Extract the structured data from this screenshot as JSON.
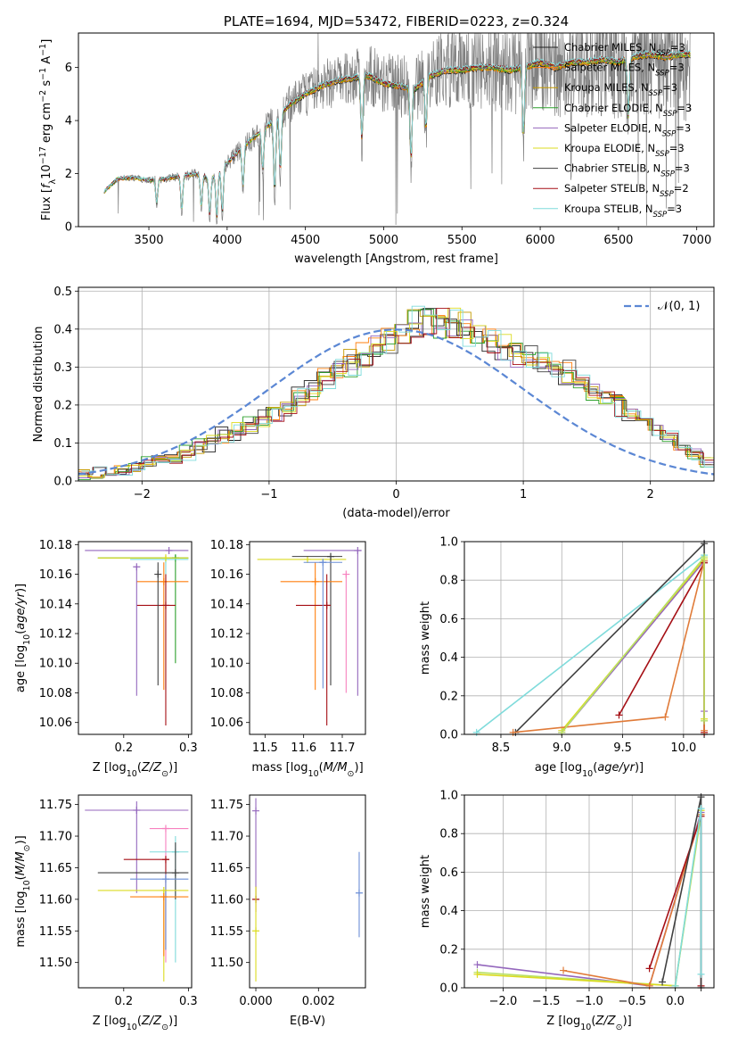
{
  "colors": {
    "chabrier_miles": "#1f1f1f",
    "salpeter_miles": "#ff7f0e",
    "kroupa_miles": "#c49a00",
    "chabrier_elodie": "#2ca02c",
    "salpeter_elodie": "#9467bd",
    "kroupa_elodie": "#dbdb20",
    "chabrier_stelib": "#404040",
    "salpeter_stelib": "#a50f15",
    "kroupa_stelib": "#7fdbdb",
    "pink": "#f781bf",
    "blue": "#6b8fd6",
    "orange2": "#e07b39",
    "light_green": "#b8e066",
    "data_gray": "#808080",
    "normal_curve": "#5b87d4"
  },
  "chart_data": [
    {
      "type": "line",
      "title": "PLATE=1694, MJD=53472, FIBERID=0223, z=0.324",
      "xlabel": "wavelength [Angstrom, rest frame]",
      "ylabel": "Flux [f_λ 10^-17 erg cm^-2 s^-1 A^-1]",
      "xlim": [
        3050,
        7110
      ],
      "ylim": [
        0,
        7.3
      ],
      "xticks": [
        "3500",
        "4000",
        "4500",
        "5000",
        "5500",
        "6000",
        "6500",
        "7000"
      ],
      "yticks": [
        "0",
        "2",
        "4",
        "6"
      ],
      "legend_position": "right",
      "legend": [
        {
          "label": "Chabrier MILES, N",
          "sub": "SSP",
          "suffix": "=3",
          "color": "chabrier_miles"
        },
        {
          "label": "Salpeter MILES, N",
          "sub": "SSP",
          "suffix": "=3",
          "color": "salpeter_miles"
        },
        {
          "label": "Kroupa MILES, N",
          "sub": "SSP",
          "suffix": "=3",
          "color": "kroupa_miles"
        },
        {
          "label": "Chabrier ELODIE, N",
          "sub": "SSP",
          "suffix": "=3",
          "color": "chabrier_elodie"
        },
        {
          "label": "Salpeter ELODIE, N",
          "sub": "SSP",
          "suffix": "=3",
          "color": "salpeter_elodie"
        },
        {
          "label": "Kroupa ELODIE, N",
          "sub": "SSP",
          "suffix": "=3",
          "color": "kroupa_elodie"
        },
        {
          "label": "Chabrier STELIB, N",
          "sub": "SSP",
          "suffix": "=3",
          "color": "chabrier_stelib"
        },
        {
          "label": "Salpeter STELIB, N",
          "sub": "SSP",
          "suffix": "=2",
          "color": "salpeter_stelib"
        },
        {
          "label": "Kroupa STELIB, N",
          "sub": "SSP",
          "suffix": "=3",
          "color": "kroupa_stelib"
        }
      ],
      "continuum": {
        "x": [
          3210,
          3300,
          3400,
          3500,
          3600,
          3700,
          3800,
          3900,
          4000,
          4100,
          4200,
          4300,
          4400,
          4500,
          4600,
          4700,
          4800,
          4900,
          5000,
          5100,
          5200,
          5300,
          5400,
          5500,
          5600,
          5700,
          5800,
          5900,
          6000,
          6100,
          6200,
          6300,
          6400,
          6500,
          6600,
          6700,
          6800,
          6900,
          6960
        ],
        "y": [
          1.3,
          1.8,
          1.85,
          1.75,
          1.8,
          1.9,
          2.0,
          1.8,
          2.4,
          3.0,
          3.5,
          4.0,
          4.6,
          5.0,
          5.3,
          5.5,
          5.6,
          5.7,
          5.4,
          5.3,
          5.2,
          5.7,
          5.9,
          5.9,
          6.0,
          6.0,
          5.9,
          6.0,
          6.2,
          6.0,
          6.2,
          6.2,
          6.3,
          6.2,
          6.4,
          6.5,
          6.4,
          6.5,
          6.5
        ]
      }
    },
    {
      "type": "bar",
      "xlabel": "(data-model)/error",
      "ylabel": "Normed distribution",
      "xlim": [
        -2.5,
        2.5
      ],
      "ylim": [
        0,
        0.51
      ],
      "xticks": [
        "−2",
        "−1",
        "0",
        "1",
        "2"
      ],
      "yticks": [
        "0.0",
        "0.1",
        "0.2",
        "0.3",
        "0.4",
        "0.5"
      ],
      "grid": true,
      "legend": [
        {
          "label": "𝒩(0, 1)",
          "color": "normal_curve"
        }
      ],
      "legend_position": "top-right",
      "bin_edges_start": -2.5,
      "bin_width": 0.1,
      "hist_base": [
        0.02,
        0.022,
        0.025,
        0.03,
        0.04,
        0.05,
        0.055,
        0.06,
        0.075,
        0.09,
        0.1,
        0.12,
        0.13,
        0.145,
        0.16,
        0.18,
        0.2,
        0.22,
        0.245,
        0.27,
        0.29,
        0.31,
        0.33,
        0.35,
        0.37,
        0.39,
        0.42,
        0.43,
        0.42,
        0.41,
        0.4,
        0.38,
        0.37,
        0.35,
        0.34,
        0.32,
        0.31,
        0.3,
        0.28,
        0.26,
        0.24,
        0.22,
        0.2,
        0.18,
        0.16,
        0.13,
        0.11,
        0.09,
        0.07,
        0.05
      ]
    },
    {
      "type": "scatter",
      "xlabel": "Z [log10(Z/Z⊙)]",
      "ylabel": "age [log10(age/yr)]",
      "xlim": [
        0.13,
        0.305
      ],
      "ylim": [
        10.052,
        10.182
      ],
      "xticks": [
        "0.2",
        "0.3"
      ],
      "yticks": [
        "10.06",
        "10.08",
        "10.10",
        "10.12",
        "10.14",
        "10.16",
        "10.18"
      ],
      "points": [
        {
          "x": 0.27,
          "y": 10.176,
          "x0": 0.14,
          "x1": 0.3,
          "y0": 10.176,
          "y1": 10.176,
          "color": "salpeter_elodie"
        },
        {
          "x": 0.28,
          "y": 10.171,
          "x0": 0.16,
          "x1": 0.3,
          "y0": 10.1,
          "y1": 10.173,
          "color": "chabrier_elodie"
        },
        {
          "x": 0.265,
          "y": 10.17,
          "x0": 0.21,
          "x1": 0.3,
          "y0": 10.083,
          "y1": 10.17,
          "color": "kroupa_stelib"
        },
        {
          "x": 0.262,
          "y": 10.155,
          "x0": 0.22,
          "x1": 0.3,
          "y0": 10.082,
          "y1": 10.168,
          "color": "salpeter_miles"
        },
        {
          "x": 0.265,
          "y": 10.139,
          "x0": 0.22,
          "x1": 0.28,
          "y0": 10.058,
          "y1": 10.16,
          "color": "salpeter_stelib"
        },
        {
          "x": 0.265,
          "y": 10.171,
          "x0": 0.16,
          "x1": 0.3,
          "y0": 10.171,
          "y1": 10.171,
          "color": "kroupa_elodie"
        },
        {
          "x": 0.253,
          "y": 10.16,
          "x0": 0.253,
          "x1": 0.253,
          "y0": 10.085,
          "y1": 10.168,
          "color": "chabrier_stelib"
        },
        {
          "x": 0.22,
          "y": 10.165,
          "x0": 0.22,
          "x1": 0.22,
          "y0": 10.078,
          "y1": 10.165,
          "color": "salpeter_elodie"
        }
      ]
    },
    {
      "type": "scatter",
      "xlabel": "mass [log10(M/M⊙)]",
      "ylabel": "",
      "xlim": [
        11.46,
        11.76
      ],
      "ylim": [
        10.052,
        10.182
      ],
      "xticks": [
        "11.5",
        "11.6",
        "11.7"
      ],
      "yticks": [
        "10.06",
        "10.08",
        "10.10",
        "10.12",
        "10.14",
        "10.16",
        "10.18"
      ],
      "points": [
        {
          "x": 11.74,
          "y": 10.176,
          "x0": 11.6,
          "x1": 11.75,
          "y0": 10.078,
          "y1": 10.176,
          "color": "salpeter_elodie"
        },
        {
          "x": 11.61,
          "y": 10.17,
          "x0": 11.48,
          "x1": 11.71,
          "y0": 10.17,
          "y1": 10.17,
          "color": "kroupa_elodie"
        },
        {
          "x": 11.67,
          "y": 10.172,
          "x0": 11.57,
          "x1": 11.7,
          "y0": 10.085,
          "y1": 10.172,
          "color": "chabrier_stelib"
        },
        {
          "x": 11.63,
          "y": 10.155,
          "x0": 11.54,
          "x1": 11.7,
          "y0": 10.082,
          "y1": 10.168,
          "color": "salpeter_miles"
        },
        {
          "x": 11.66,
          "y": 10.139,
          "x0": 11.58,
          "x1": 11.67,
          "y0": 10.058,
          "y1": 10.16,
          "color": "salpeter_stelib"
        },
        {
          "x": 11.71,
          "y": 10.16,
          "x0": 11.71,
          "x1": 11.71,
          "y0": 10.08,
          "y1": 10.16,
          "color": "pink"
        },
        {
          "x": 11.65,
          "y": 10.168,
          "x0": 11.6,
          "x1": 11.7,
          "y0": 10.083,
          "y1": 10.17,
          "color": "blue"
        }
      ]
    },
    {
      "type": "line",
      "xlabel": "age [log10(age/yr)]",
      "ylabel": "mass weight",
      "xlim": [
        8.2,
        10.25
      ],
      "ylim": [
        0,
        1.0
      ],
      "xticks": [
        "8.5",
        "9.0",
        "9.5",
        "10.0"
      ],
      "yticks": [
        "0.0",
        "0.2",
        "0.4",
        "0.6",
        "0.8",
        "1.0"
      ],
      "grid": true,
      "series": [
        {
          "x": [
            8.3,
            10.17,
            10.17
          ],
          "y": [
            0.01,
            0.93,
            0.07
          ],
          "color": "kroupa_stelib"
        },
        {
          "x": [
            8.62,
            10.17,
            10.17
          ],
          "y": [
            0.01,
            0.99,
            0.0
          ],
          "color": "chabrier_stelib"
        },
        {
          "x": [
            9.0,
            10.17,
            10.17
          ],
          "y": [
            0.01,
            0.9,
            0.12
          ],
          "color": "salpeter_elodie"
        },
        {
          "x": [
            9.0,
            10.17,
            10.17
          ],
          "y": [
            0.02,
            0.91,
            0.08
          ],
          "color": "kroupa_elodie"
        },
        {
          "x": [
            9.47,
            10.17,
            10.17
          ],
          "y": [
            0.1,
            0.89,
            0.01
          ],
          "color": "salpeter_stelib"
        },
        {
          "x": [
            8.6,
            9.85,
            10.17,
            10.17
          ],
          "y": [
            0.01,
            0.09,
            0.9,
            0.02
          ],
          "color": "orange2"
        },
        {
          "x": [
            9.0,
            10.17,
            10.17
          ],
          "y": [
            0.01,
            0.92,
            0.07
          ],
          "color": "light_green"
        }
      ]
    },
    {
      "type": "scatter",
      "xlabel": "Z [log10(Z/Z⊙)]",
      "ylabel": "mass [log10(M/M⊙)]",
      "xlim": [
        0.13,
        0.305
      ],
      "ylim": [
        11.46,
        11.765
      ],
      "xticks": [
        "0.2",
        "0.3"
      ],
      "yticks": [
        "11.50",
        "11.55",
        "11.60",
        "11.65",
        "11.70",
        "11.75"
      ],
      "points": [
        {
          "x": 0.22,
          "y": 11.741,
          "x0": 0.14,
          "x1": 0.3,
          "y0": 11.61,
          "y1": 11.755,
          "color": "salpeter_elodie"
        },
        {
          "x": 0.265,
          "y": 11.712,
          "x0": 0.24,
          "x1": 0.3,
          "y0": 11.5,
          "y1": 11.712,
          "color": "pink"
        },
        {
          "x": 0.28,
          "y": 11.675,
          "x0": 0.24,
          "x1": 0.3,
          "y0": 11.5,
          "y1": 11.7,
          "color": "kroupa_stelib"
        },
        {
          "x": 0.265,
          "y": 11.663,
          "x0": 0.2,
          "x1": 0.27,
          "y0": 11.52,
          "y1": 11.663,
          "color": "salpeter_stelib"
        },
        {
          "x": 0.28,
          "y": 11.642,
          "x0": 0.16,
          "x1": 0.3,
          "y0": 11.6,
          "y1": 11.69,
          "color": "chabrier_stelib"
        },
        {
          "x": 0.265,
          "y": 11.632,
          "x0": 0.21,
          "x1": 0.3,
          "y0": 11.52,
          "y1": 11.64,
          "color": "blue"
        },
        {
          "x": 0.262,
          "y": 11.614,
          "x0": 0.16,
          "x1": 0.3,
          "y0": 11.47,
          "y1": 11.614,
          "color": "kroupa_elodie"
        },
        {
          "x": 0.262,
          "y": 11.604,
          "x0": 0.21,
          "x1": 0.3,
          "y0": 11.51,
          "y1": 11.604,
          "color": "salpeter_miles"
        }
      ]
    },
    {
      "type": "scatter",
      "xlabel": "E(B-V)",
      "ylabel": "",
      "xlim": [
        -0.0002,
        0.0035
      ],
      "ylim": [
        11.46,
        11.765
      ],
      "xticks": [
        "0.000",
        "0.002"
      ],
      "yticks": [
        "11.50",
        "11.55",
        "11.60",
        "11.65",
        "11.70",
        "11.75"
      ],
      "points": [
        {
          "x": 0.0,
          "y": 11.74,
          "x0": 0.0,
          "x1": 0.0,
          "y0": 11.6,
          "y1": 11.76,
          "color": "salpeter_elodie"
        },
        {
          "x": 0.0,
          "y": 11.6,
          "x0": 0.0,
          "x1": 0.0,
          "y0": 11.58,
          "y1": 11.62,
          "color": "salpeter_stelib"
        },
        {
          "x": 0.0,
          "y": 11.55,
          "x0": 0.0,
          "x1": 0.0,
          "y0": 11.47,
          "y1": 11.62,
          "color": "kroupa_elodie"
        },
        {
          "x": 0.0033,
          "y": 11.61,
          "x0": 0.0033,
          "x1": 0.0033,
          "y0": 11.54,
          "y1": 11.675,
          "color": "blue"
        }
      ]
    },
    {
      "type": "line",
      "xlabel": "Z [log10(Z/Z⊙)]",
      "ylabel": "mass weight",
      "xlim": [
        -2.45,
        0.45
      ],
      "ylim": [
        0,
        1.0
      ],
      "xticks": [
        "−2.0",
        "−1.5",
        "−1.0",
        "−0.5",
        "0.0"
      ],
      "yticks": [
        "0.0",
        "0.2",
        "0.4",
        "0.6",
        "0.8",
        "1.0"
      ],
      "grid": true,
      "series": [
        {
          "x": [
            -2.3,
            -0.3,
            0.3
          ],
          "y": [
            0.12,
            0.01,
            0.91
          ],
          "color": "salpeter_elodie"
        },
        {
          "x": [
            -2.3,
            0.0,
            0.3
          ],
          "y": [
            0.08,
            0.01,
            0.9
          ],
          "color": "light_green"
        },
        {
          "x": [
            -2.3,
            0.0,
            0.3
          ],
          "y": [
            0.07,
            0.01,
            0.92
          ],
          "color": "kroupa_elodie"
        },
        {
          "x": [
            -1.3,
            -0.3,
            0.3
          ],
          "y": [
            0.09,
            0.01,
            0.9
          ],
          "color": "orange2"
        },
        {
          "x": [
            -0.3,
            0.3,
            0.3
          ],
          "y": [
            0.1,
            0.89,
            0.01
          ],
          "color": "salpeter_stelib"
        },
        {
          "x": [
            -0.15,
            0.3,
            0.3
          ],
          "y": [
            0.03,
            0.99,
            0.0
          ],
          "color": "chabrier_stelib"
        },
        {
          "x": [
            0.0,
            0.3,
            0.3
          ],
          "y": [
            0.01,
            0.93,
            0.07
          ],
          "color": "kroupa_stelib"
        }
      ]
    }
  ]
}
